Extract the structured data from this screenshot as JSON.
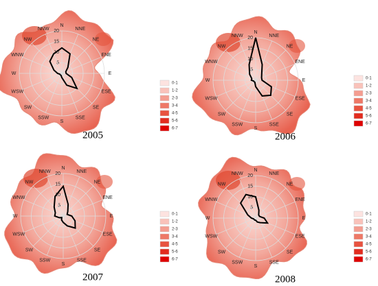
{
  "chart_data": [
    {
      "type": "radar",
      "title": "2005",
      "categories": [
        "N",
        "NNE",
        "NE",
        "ENE",
        "E",
        "ESE",
        "SE",
        "SSE",
        "S",
        "SSW",
        "SW",
        "WSW",
        "W",
        "WNW",
        "NW",
        "NNW"
      ],
      "values": [
        12,
        10,
        4,
        2,
        2,
        5,
        10,
        6,
        2,
        1,
        1,
        1,
        2,
        4,
        8,
        10
      ],
      "rlim": [
        0,
        20
      ],
      "rticks": [
        5,
        10,
        15,
        20
      ],
      "color": "#000000",
      "legend": {
        "labels": [
          "0-1",
          "1-2",
          "2-3",
          "3-4",
          "4-5",
          "5-6",
          "6-7"
        ],
        "colors": [
          "#fde3e0",
          "#f9c2ba",
          "#f49d90",
          "#ee7866",
          "#e8523f",
          "#e22c1f",
          "#de0000"
        ]
      }
    },
    {
      "type": "radar",
      "title": "2006",
      "categories": [
        "N",
        "NNE",
        "NE",
        "ENE",
        "E",
        "ESE",
        "SE",
        "SSE",
        "S",
        "SSW",
        "SW",
        "WSW",
        "W",
        "WNW",
        "NW",
        "NNW"
      ],
      "values": [
        20,
        8,
        4,
        3,
        3,
        8,
        10,
        8,
        3,
        1,
        1,
        1,
        2,
        2,
        4,
        8
      ],
      "rlim": [
        0,
        20
      ],
      "rticks": [
        5,
        10,
        15,
        20
      ],
      "color": "#000000",
      "legend": {
        "labels": [
          "0-1",
          "1-2",
          "2-3",
          "3-4",
          "4-5",
          "5-6",
          "6-7"
        ],
        "colors": [
          "#fde3e0",
          "#f9c2ba",
          "#f49d90",
          "#ee7866",
          "#e8523f",
          "#e22c1f",
          "#de0000"
        ]
      }
    },
    {
      "type": "radar",
      "title": "2007",
      "categories": [
        "N",
        "NNE",
        "NE",
        "ENE",
        "E",
        "ESE",
        "SE",
        "SSE",
        "S",
        "SSW",
        "SW",
        "WSW",
        "W",
        "WNW",
        "NW",
        "NNW"
      ],
      "values": [
        14,
        6,
        3,
        2,
        4,
        6,
        8,
        5,
        3,
        2,
        1,
        2,
        4,
        4,
        6,
        10
      ],
      "rlim": [
        0,
        20
      ],
      "rticks": [
        5,
        10,
        15,
        20
      ],
      "color": "#000000",
      "legend": {
        "labels": [
          "0-1",
          "1-2",
          "2-3",
          "3-4",
          "4-5",
          "5-6",
          "6-7"
        ],
        "colors": [
          "#fde3e0",
          "#f9c2ba",
          "#f49d90",
          "#ee7866",
          "#e8523f",
          "#e22c1f",
          "#de0000"
        ]
      }
    },
    {
      "type": "radar",
      "title": "2008",
      "categories": [
        "N",
        "NNE",
        "NE",
        "ENE",
        "E",
        "ESE",
        "SE",
        "SSE",
        "S",
        "SSW",
        "SW",
        "WSW",
        "W",
        "WNW",
        "NW",
        "NNW"
      ],
      "values": [
        10,
        4,
        2,
        2,
        4,
        6,
        3,
        2,
        1,
        1,
        1,
        1,
        2,
        4,
        10,
        12
      ],
      "rlim": [
        0,
        20
      ],
      "rticks": [
        5,
        10,
        15,
        20
      ],
      "color": "#000000",
      "legend": {
        "labels": [
          "0-1",
          "1-2",
          "2-3",
          "3-4",
          "4-5",
          "5-6",
          "6-7"
        ],
        "colors": [
          "#fde3e0",
          "#f9c2ba",
          "#f49d90",
          "#ee7866",
          "#e8523f",
          "#e22c1f",
          "#de0000"
        ]
      }
    }
  ]
}
